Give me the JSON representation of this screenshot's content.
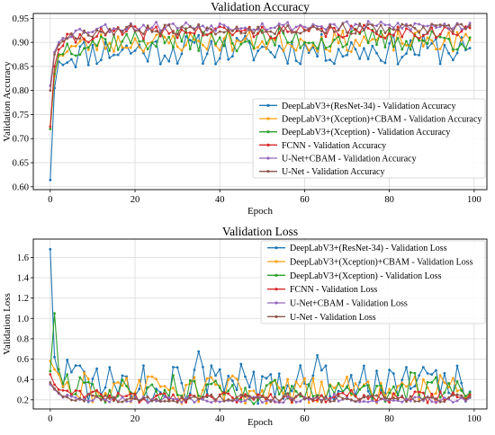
{
  "chart_data": [
    {
      "type": "line",
      "title": "Validation Accuracy",
      "xlabel": "Epoch",
      "ylabel": "Validation Accuracy",
      "xlim": [
        -4,
        103
      ],
      "ylim": [
        0.594,
        0.96
      ],
      "xticks": [
        "0",
        "20",
        "40",
        "60",
        "80",
        "100"
      ],
      "yticks": [
        "0.60",
        "0.65",
        "0.70",
        "0.75",
        "0.80",
        "0.85",
        "0.90",
        "0.95"
      ],
      "grid": true,
      "legend_position": "lower-right",
      "series": [
        {
          "name": "DeepLabV3+(ResNet-34) - Validation Accuracy",
          "color": "#1f77b4",
          "start": [
            0.614,
            0.805,
            0.86
          ],
          "base": 0.885,
          "amp": 0.032,
          "end": 0.888,
          "seed": 11
        },
        {
          "name": "DeepLabV3+(Xception)+CBAM - Validation Accuracy",
          "color": "#ff9f0e",
          "start": [
            0.72,
            0.83,
            0.872
          ],
          "base": 0.902,
          "amp": 0.022,
          "end": 0.905,
          "seed": 23
        },
        {
          "name": "DeepLabV3+(Xception) - Validation Accuracy",
          "color": "#2ca02c",
          "start": [
            0.72,
            0.835,
            0.875
          ],
          "base": 0.906,
          "amp": 0.024,
          "end": 0.91,
          "seed": 37
        },
        {
          "name": "FCNN - Validation Accuracy",
          "color": "#d62728",
          "start": [
            0.725,
            0.85,
            0.885
          ],
          "base": 0.922,
          "amp": 0.014,
          "end": 0.93,
          "seed": 41
        },
        {
          "name": "U-Net+CBAM - Validation Accuracy",
          "color": "#9467bd",
          "start": [
            0.81,
            0.88,
            0.9
          ],
          "base": 0.934,
          "amp": 0.01,
          "end": 0.94,
          "seed": 53
        },
        {
          "name": "U-Net - Validation Accuracy",
          "color": "#8c564b",
          "start": [
            0.8,
            0.875,
            0.895
          ],
          "base": 0.928,
          "amp": 0.011,
          "end": 0.935,
          "seed": 67
        }
      ]
    },
    {
      "type": "line",
      "title": "Validation Loss",
      "xlabel": "Epoch",
      "ylabel": "Validation Loss",
      "xlim": [
        -4,
        103
      ],
      "ylim": [
        0.11,
        1.78
      ],
      "xticks": [
        "0",
        "20",
        "40",
        "60",
        "80",
        "100"
      ],
      "yticks": [
        "0.2",
        "0.4",
        "0.6",
        "0.8",
        "1.0",
        "1.2",
        "1.4",
        "1.6"
      ],
      "grid": true,
      "legend_position": "upper-right",
      "series": [
        {
          "name": "DeepLabV3+(ResNet-34) - Validation Loss",
          "color": "#1f77b4",
          "start": [
            1.68,
            0.62,
            0.45
          ],
          "base": 0.36,
          "amp": 0.2,
          "end": 0.28,
          "seed": 101
        },
        {
          "name": "DeepLabV3+(Xception)+CBAM - Validation Loss",
          "color": "#ff9f0e",
          "start": [
            0.58,
            0.5,
            0.45
          ],
          "base": 0.3,
          "amp": 0.14,
          "end": 0.25,
          "seed": 113
        },
        {
          "name": "DeepLabV3+(Xception) - Validation Loss",
          "color": "#2ca02c",
          "start": [
            0.48,
            1.05,
            0.5
          ],
          "base": 0.28,
          "amp": 0.12,
          "end": 0.27,
          "seed": 127
        },
        {
          "name": "FCNN - Validation Loss",
          "color": "#d62728",
          "start": [
            0.45,
            0.35,
            0.3
          ],
          "base": 0.22,
          "amp": 0.05,
          "end": 0.25,
          "seed": 139
        },
        {
          "name": "U-Net+CBAM - Validation Loss",
          "color": "#9467bd",
          "start": [
            0.35,
            0.3,
            0.26
          ],
          "base": 0.2,
          "amp": 0.03,
          "end": 0.22,
          "seed": 149
        },
        {
          "name": "U-Net - Validation Loss",
          "color": "#8c564b",
          "start": [
            0.37,
            0.31,
            0.27
          ],
          "base": 0.21,
          "amp": 0.035,
          "end": 0.23,
          "seed": 157
        }
      ]
    }
  ]
}
